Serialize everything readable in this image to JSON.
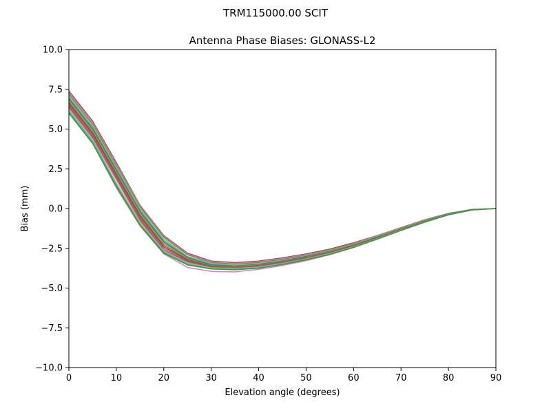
{
  "figure": {
    "suptitle": "TRM115000.00    SCIT"
  },
  "chart_data": {
    "type": "line",
    "title": "Antenna Phase Biases: GLONASS-L2",
    "xlabel": "Elevation angle (degrees)",
    "ylabel": "Bias (mm)",
    "xlim": [
      0,
      90
    ],
    "ylim": [
      -10,
      10
    ],
    "grid": false,
    "x": [
      0,
      5,
      10,
      15,
      20,
      25,
      30,
      35,
      40,
      45,
      50,
      55,
      60,
      65,
      70,
      75,
      80,
      85,
      90
    ],
    "x_ticks": [
      0,
      10,
      20,
      30,
      40,
      50,
      60,
      70,
      80,
      90
    ],
    "x_tick_labels": [
      "0",
      "10",
      "20",
      "30",
      "40",
      "50",
      "60",
      "70",
      "80",
      "90"
    ],
    "y_ticks": [
      -10,
      -7.5,
      -5,
      -2.5,
      0,
      2.5,
      5,
      7.5,
      10
    ],
    "y_tick_labels": [
      "−10.0",
      "−7.5",
      "−5.0",
      "−2.5",
      "0.0",
      "2.5",
      "5.0",
      "7.5",
      "10.0"
    ],
    "series": [
      {
        "color": "#8c564b",
        "values": [
          7.4,
          5.5,
          2.9,
          0.2,
          -1.7,
          -2.8,
          -3.3,
          -3.4,
          -3.3,
          -3.1,
          -2.85,
          -2.55,
          -2.15,
          -1.7,
          -1.2,
          -0.7,
          -0.3,
          -0.05,
          0.0
        ]
      },
      {
        "color": "#e377c2",
        "values": [
          7.3,
          5.4,
          2.8,
          0.15,
          -1.75,
          -2.85,
          -3.35,
          -3.45,
          -3.35,
          -3.15,
          -2.9,
          -2.6,
          -2.2,
          -1.72,
          -1.22,
          -0.72,
          -0.31,
          -0.05,
          0.0
        ]
      },
      {
        "color": "#7f7f7f",
        "values": [
          7.2,
          5.3,
          2.7,
          0.1,
          -1.8,
          -2.9,
          -3.4,
          -3.5,
          -3.4,
          -3.2,
          -2.95,
          -2.62,
          -2.22,
          -1.75,
          -1.24,
          -0.74,
          -0.32,
          -0.06,
          0.0
        ]
      },
      {
        "color": "#bcbd22",
        "values": [
          7.1,
          5.2,
          2.6,
          0.0,
          -1.9,
          -3.0,
          -3.45,
          -3.55,
          -3.45,
          -3.25,
          -2.98,
          -2.65,
          -2.25,
          -1.77,
          -1.26,
          -0.75,
          -0.33,
          -0.06,
          0.0
        ]
      },
      {
        "color": "#17becf",
        "values": [
          7.0,
          5.1,
          2.5,
          -0.1,
          -2.0,
          -3.05,
          -3.5,
          -3.6,
          -3.5,
          -3.28,
          -3.0,
          -2.68,
          -2.27,
          -1.79,
          -1.28,
          -0.76,
          -0.34,
          -0.06,
          0.0
        ]
      },
      {
        "color": "#1f77b4",
        "values": [
          6.9,
          5.0,
          2.4,
          -0.2,
          -2.1,
          -3.1,
          -3.55,
          -3.62,
          -3.52,
          -3.3,
          -3.02,
          -2.7,
          -2.29,
          -1.8,
          -1.29,
          -0.77,
          -0.34,
          -0.07,
          0.0
        ]
      },
      {
        "color": "#ff7f0e",
        "values": [
          6.8,
          4.9,
          2.3,
          -0.3,
          -2.2,
          -3.15,
          -3.6,
          -3.65,
          -3.55,
          -3.33,
          -3.05,
          -2.72,
          -2.3,
          -1.82,
          -1.3,
          -0.78,
          -0.35,
          -0.07,
          0.0
        ]
      },
      {
        "color": "#2ca02c",
        "values": [
          6.7,
          4.8,
          2.2,
          -0.4,
          -2.3,
          -3.2,
          -3.62,
          -3.68,
          -3.57,
          -3.35,
          -3.07,
          -2.74,
          -2.32,
          -1.83,
          -1.31,
          -0.79,
          -0.35,
          -0.07,
          0.0
        ]
      },
      {
        "color": "#d62728",
        "values": [
          6.6,
          4.7,
          2.1,
          -0.5,
          -2.4,
          -3.25,
          -3.65,
          -3.7,
          -3.6,
          -3.38,
          -3.1,
          -2.76,
          -2.34,
          -1.85,
          -1.32,
          -0.8,
          -0.36,
          -0.07,
          0.0
        ]
      },
      {
        "color": "#9467bd",
        "values": [
          6.5,
          4.6,
          2.0,
          -0.6,
          -2.5,
          -3.3,
          -3.68,
          -3.72,
          -3.62,
          -3.4,
          -3.12,
          -2.78,
          -2.36,
          -1.86,
          -1.33,
          -0.81,
          -0.36,
          -0.08,
          0.0
        ]
      },
      {
        "color": "#8c564b",
        "values": [
          6.4,
          4.5,
          1.9,
          -0.7,
          -2.6,
          -3.35,
          -3.7,
          -3.75,
          -3.65,
          -3.43,
          -3.14,
          -2.8,
          -2.38,
          -1.88,
          -1.34,
          -0.82,
          -0.37,
          -0.08,
          0.0
        ]
      },
      {
        "color": "#e377c2",
        "values": [
          6.3,
          4.4,
          1.8,
          -0.8,
          -2.65,
          -3.4,
          -3.72,
          -3.77,
          -3.67,
          -3.45,
          -3.16,
          -2.82,
          -2.4,
          -1.89,
          -1.35,
          -0.83,
          -0.37,
          -0.08,
          0.0
        ]
      },
      {
        "color": "#bcbd22",
        "values": [
          6.2,
          4.3,
          1.6,
          -0.9,
          -2.7,
          -3.45,
          -3.75,
          -3.8,
          -3.7,
          -3.48,
          -3.18,
          -2.84,
          -2.42,
          -1.9,
          -1.36,
          -0.84,
          -0.38,
          -0.08,
          0.0
        ]
      },
      {
        "color": "#17becf",
        "values": [
          6.1,
          4.2,
          1.5,
          -1.0,
          -2.75,
          -3.5,
          -3.78,
          -3.82,
          -3.72,
          -3.5,
          -3.2,
          -2.86,
          -2.43,
          -1.91,
          -1.37,
          -0.84,
          -0.38,
          -0.08,
          0.0
        ]
      },
      {
        "color": "#e377c2",
        "values": [
          6.0,
          4.1,
          1.3,
          -1.1,
          -2.85,
          -3.7,
          -3.95,
          -3.98,
          -3.82,
          -3.58,
          -3.28,
          -2.9,
          -2.45,
          -1.93,
          -1.38,
          -0.86,
          -0.4,
          -0.09,
          0.0
        ]
      },
      {
        "color": "#2ca02c",
        "values": [
          6.0,
          4.1,
          1.4,
          -1.05,
          -2.8,
          -3.55,
          -3.8,
          -3.85,
          -3.75,
          -3.52,
          -3.22,
          -2.88,
          -2.44,
          -1.92,
          -1.37,
          -0.85,
          -0.39,
          -0.08,
          0.0
        ]
      }
    ]
  }
}
